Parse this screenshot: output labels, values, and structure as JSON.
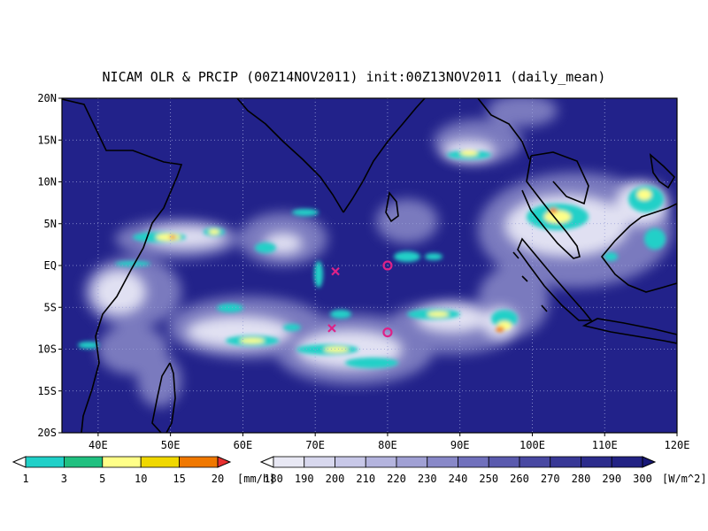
{
  "title": "NICAM OLR & PRCIP (00Z14NOV2011) init:00Z13NOV2011 (daily_mean)",
  "map": {
    "lon_range": [
      35,
      120
    ],
    "lat_range": [
      -20,
      20
    ],
    "lat_ticks": [
      "20N",
      "15N",
      "10N",
      "5N",
      "EQ",
      "5S",
      "10S",
      "15S",
      "20S"
    ],
    "lon_ticks": [
      "40E",
      "50E",
      "60E",
      "70E",
      "80E",
      "90E",
      "100E",
      "110E",
      "120E"
    ],
    "ocean_color": "#22228a",
    "grid": true
  },
  "markers": [
    {
      "type": "x",
      "lon": 72.8,
      "lat": -0.7,
      "color": "#dd2288"
    },
    {
      "type": "x",
      "lon": 72.3,
      "lat": -7.5,
      "color": "#dd2288"
    },
    {
      "type": "o",
      "lon": 80.0,
      "lat": 0.0,
      "color": "#dd2288"
    },
    {
      "type": "o",
      "lon": 80.0,
      "lat": -8.0,
      "color": "#dd2288"
    }
  ],
  "precip_legend": {
    "labels": [
      "1",
      "3",
      "5",
      "10",
      "15",
      "20"
    ],
    "unit": "[mm/h]",
    "colors": [
      "#ffffff",
      "#20d0c8",
      "#20c080",
      "#ffff88",
      "#f0d800",
      "#f07800",
      "#e83030"
    ]
  },
  "olr_legend": {
    "labels": [
      "180",
      "190",
      "200",
      "210",
      "220",
      "230",
      "240",
      "250",
      "260",
      "270",
      "280",
      "290",
      "300"
    ],
    "unit": "[W/m^2]",
    "colors": [
      "#ffffff",
      "#e8e8f4",
      "#d8d8ee",
      "#c8c8e8",
      "#b4b4de",
      "#a0a0d4",
      "#8888c8",
      "#7070bc",
      "#5a5aae",
      "#4848a2",
      "#383896",
      "#2c2c8c",
      "#222284",
      "#181878"
    ]
  }
}
